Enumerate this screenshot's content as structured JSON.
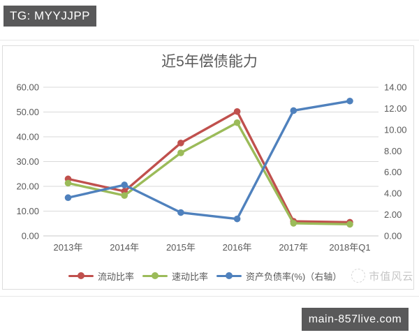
{
  "badges": {
    "top_left": "TG: MYYJJPP",
    "bottom_right": "main-857live.com"
  },
  "chart_data": {
    "type": "line",
    "title": "近5年偿债能力",
    "categories": [
      "2013年",
      "2014年",
      "2015年",
      "2016年",
      "2017年",
      "2018年Q1"
    ],
    "series": [
      {
        "name": "流动比率",
        "axis": "left",
        "color": "#c0504d",
        "values": [
          23.0,
          18.0,
          37.5,
          50.2,
          5.9,
          5.5
        ]
      },
      {
        "name": "速动比率",
        "axis": "left",
        "color": "#9bbb59",
        "values": [
          21.3,
          16.3,
          33.5,
          45.7,
          5.1,
          4.7
        ]
      },
      {
        "name": "资产负债率(%)（右轴）",
        "axis": "right",
        "color": "#4f81bd",
        "values": [
          3.6,
          4.8,
          2.2,
          1.6,
          11.8,
          12.7
        ]
      }
    ],
    "left_axis": {
      "min": 0,
      "max": 60,
      "step": 10,
      "tick_format": "0.00"
    },
    "right_axis": {
      "min": 0,
      "max": 14,
      "step": 2,
      "tick_format": "0.00"
    },
    "grid": true,
    "legend_position": "bottom"
  },
  "watermark": {
    "text": "市值风云"
  },
  "colors": {
    "badge_bg": "#59595a",
    "text_gray": "#595959",
    "grid": "#d9d9d9",
    "axis_line": "#c9c9c9",
    "watermark": "#c6c6c6"
  }
}
